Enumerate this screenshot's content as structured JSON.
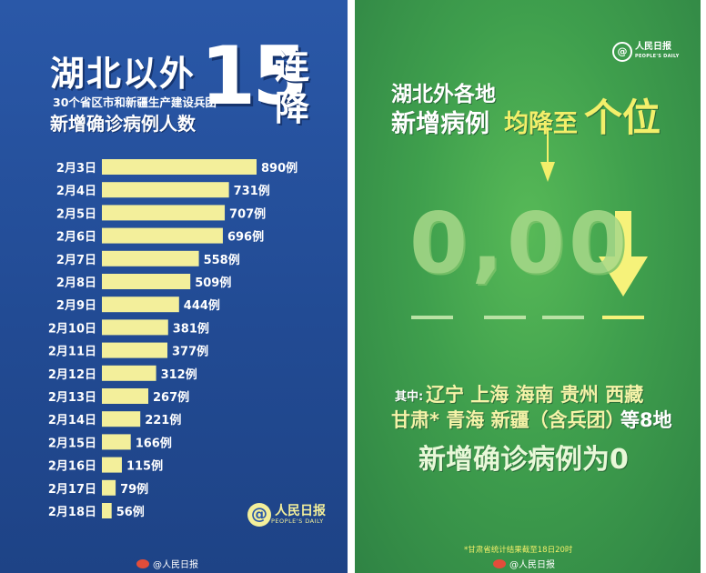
{
  "left": {
    "title_main": "湖北以外",
    "title_num": "15",
    "title_tail": "连降",
    "subtitle": "30个省区市和新疆生产建设兵团",
    "subtitle2": "新增确诊病例人数",
    "watermark": "人民日报",
    "watermark_sub": "PEOPLE'S DAILY",
    "weibo": "@人民日报",
    "colors": {
      "bar": "#f3ef9b",
      "text": "#ffffff",
      "background": "#2a58a8"
    }
  },
  "chart_data": {
    "type": "bar",
    "orientation": "horizontal",
    "categories": [
      "2月3日",
      "2月4日",
      "2月5日",
      "2月6日",
      "2月7日",
      "2月8日",
      "2月9日",
      "2月10日",
      "2月11日",
      "2月12日",
      "2月13日",
      "2月14日",
      "2月15日",
      "2月16日",
      "2月17日",
      "2月18日"
    ],
    "values": [
      890,
      731,
      707,
      696,
      558,
      509,
      444,
      381,
      377,
      312,
      267,
      221,
      166,
      115,
      79,
      56
    ],
    "value_suffix": "例",
    "title": "湖北以外15连降",
    "subtitle": "30个省区市和新疆生产建设兵团新增确诊病例人数"
  },
  "right": {
    "logo": "人民日报",
    "logo_sub": "PEOPLE'S DAILY",
    "line1": "湖北外各地",
    "line2a": "新增病例",
    "line2b": "均降至",
    "line2c": "个位",
    "digits": "0,00",
    "among": "其中:",
    "provinces": "辽宁 上海 海南 贵州 西藏",
    "provinces2": "甘肃* 青海 新疆（含兵团）",
    "suffix": "等8地",
    "result": "新增确诊病例为0",
    "note": "*甘肃省统计结果截至18日20时",
    "weibo": "@人民日报",
    "colors": {
      "accent": "#f3ef6a",
      "background": "#3f9f4d",
      "arrow": "#f6f27a"
    }
  }
}
